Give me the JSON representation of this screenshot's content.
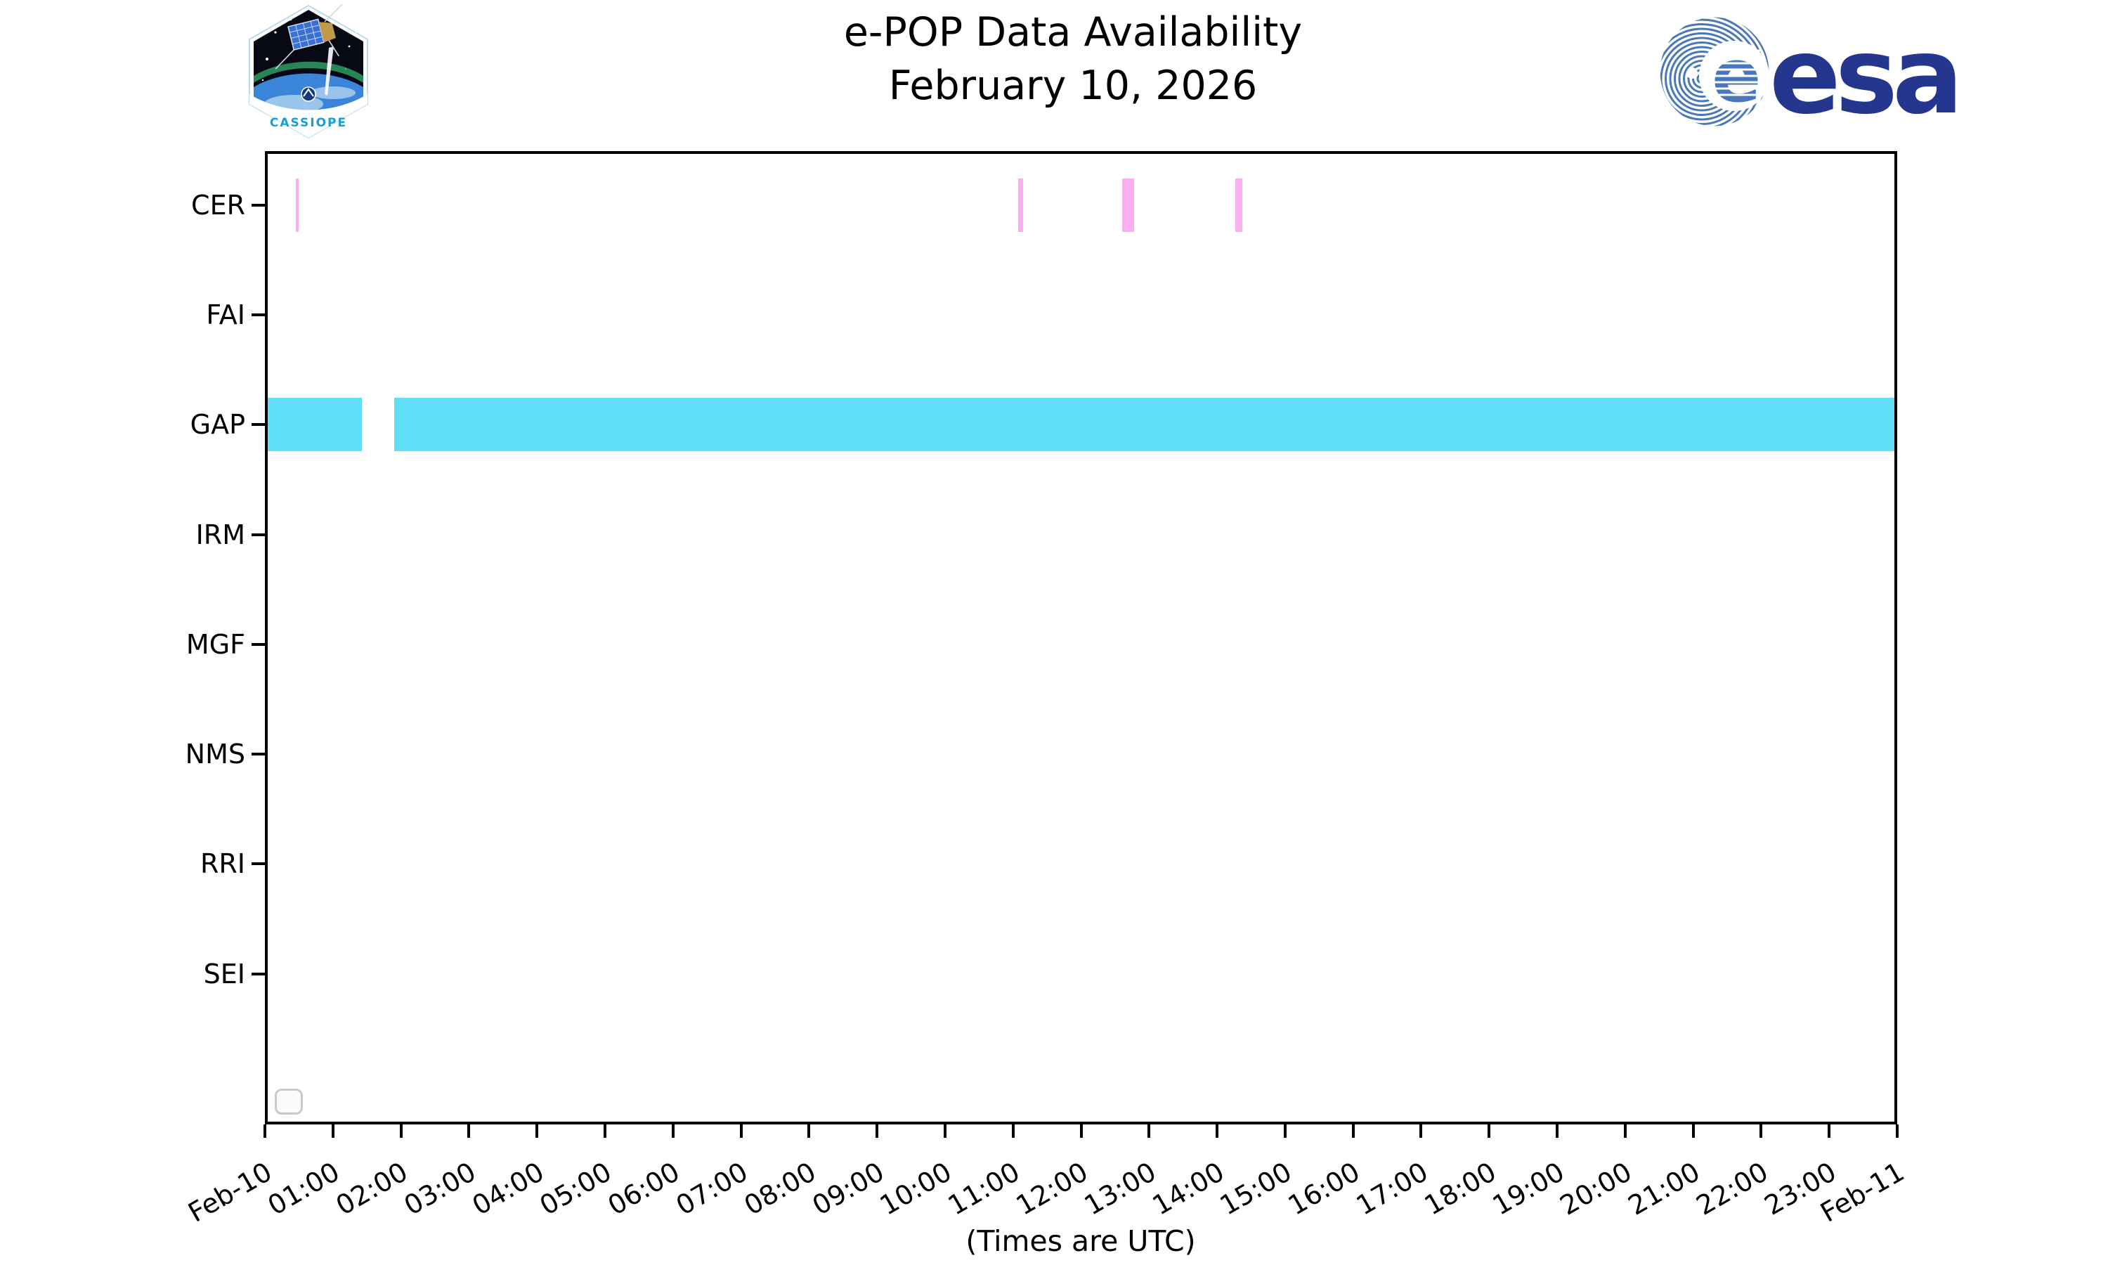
{
  "title": {
    "line1": "e-POP Data Availability",
    "line2": "February 10, 2026"
  },
  "branding": {
    "cassiope_patch_text": "CASSIOPE",
    "esa_wordmark": "esa"
  },
  "colors": {
    "cer_bar": "#fcaef0",
    "gap_bar": "#61dff8",
    "axis": "#000000",
    "esa_blue": "#25368e",
    "esa_stripe_blue": "#4a77b8",
    "legend_border": "#c9c9c9"
  },
  "chart_data": {
    "type": "bar",
    "orientation": "horizontal-timeline",
    "title": "e-POP Data Availability",
    "subtitle": "February 10, 2026",
    "xlabel": "(Times are UTC)",
    "x_range_hours": [
      0,
      24
    ],
    "x_ticks": [
      "Feb-10",
      "01:00",
      "02:00",
      "03:00",
      "04:00",
      "05:00",
      "06:00",
      "07:00",
      "08:00",
      "09:00",
      "10:00",
      "11:00",
      "12:00",
      "13:00",
      "14:00",
      "15:00",
      "16:00",
      "17:00",
      "18:00",
      "19:00",
      "20:00",
      "21:00",
      "22:00",
      "23:00",
      "Feb-11"
    ],
    "categories": [
      "CER",
      "FAI",
      "GAP",
      "IRM",
      "MGF",
      "NMS",
      "RRI",
      "SEI"
    ],
    "grid": false,
    "legend": {
      "visible": true,
      "entries": []
    },
    "series": [
      {
        "category": "CER",
        "color": "#fcaef0",
        "segments": [
          {
            "start_hour": 0.45,
            "end_hour": 0.5,
            "start_time": "00:27",
            "end_time": "00:30"
          },
          {
            "start_hour": 11.08,
            "end_hour": 11.15,
            "start_time": "11:05",
            "end_time": "11:09"
          },
          {
            "start_hour": 12.6,
            "end_hour": 12.78,
            "start_time": "12:36",
            "end_time": "12:47"
          },
          {
            "start_hour": 14.27,
            "end_hour": 14.37,
            "start_time": "14:16",
            "end_time": "14:22"
          }
        ]
      },
      {
        "category": "GAP",
        "color": "#61dff8",
        "segments": [
          {
            "start_hour": 0.0,
            "end_hour": 1.43,
            "start_time": "00:00",
            "end_time": "01:26"
          },
          {
            "start_hour": 1.9,
            "end_hour": 24.0,
            "start_time": "01:54",
            "end_time": "24:00"
          }
        ]
      }
    ]
  }
}
